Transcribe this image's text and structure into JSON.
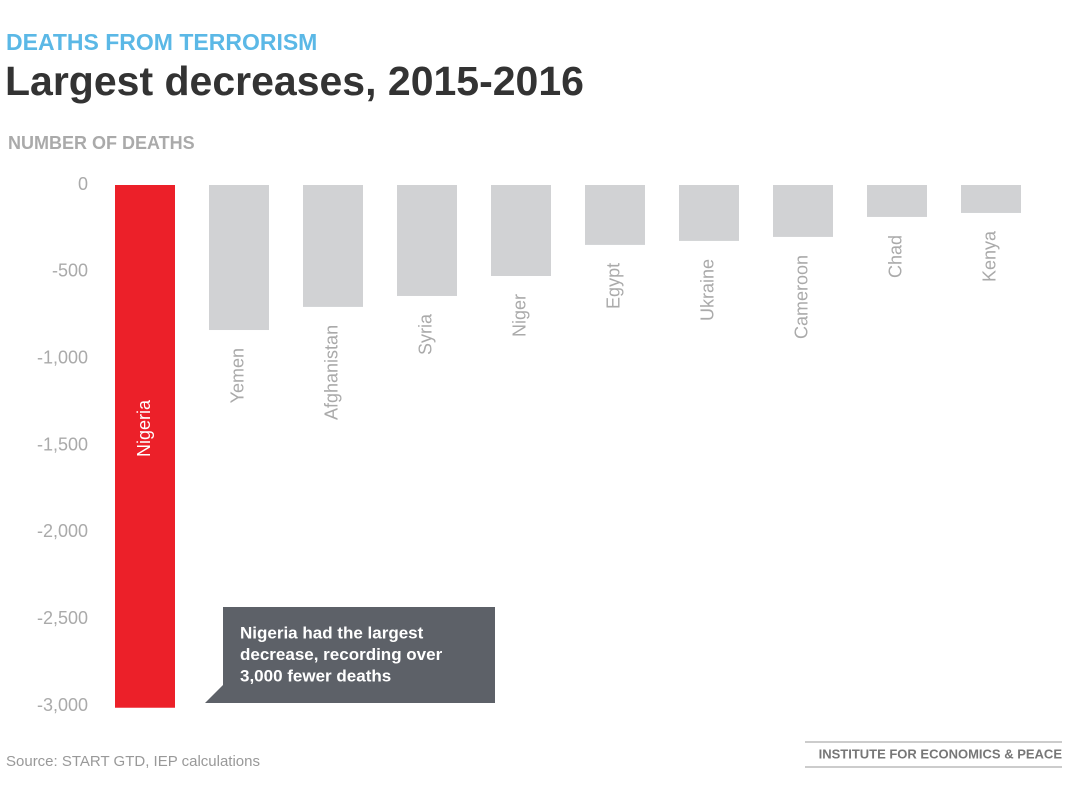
{
  "chart_data": {
    "type": "bar",
    "kicker": "DEATHS FROM TERRORISM",
    "title": "Largest decreases, 2015-2016",
    "y_label": "NUMBER OF DEATHS",
    "categories": [
      "Nigeria",
      "Yemen",
      "Afghanistan",
      "Syria",
      "Niger",
      "Egypt",
      "Ukraine",
      "Cameroon",
      "Chad",
      "Kenya"
    ],
    "values": [
      -3010,
      -835,
      -702,
      -639,
      -524,
      -345,
      -322,
      -299,
      -184,
      -161
    ],
    "colors": [
      "#ec2029",
      "#d1d2d4",
      "#d1d2d4",
      "#d1d2d4",
      "#d1d2d4",
      "#d1d2d4",
      "#d1d2d4",
      "#d1d2d4",
      "#d1d2d4",
      "#d1d2d4"
    ],
    "ylim": [
      -3000,
      0
    ],
    "yticks": [
      0,
      -500,
      {
        "value": -1000,
        "label": "-1,000"
      },
      {
        "value": -1500,
        "label": "-1,500"
      },
      {
        "value": -2000,
        "label": "-2,000"
      },
      {
        "value": -2500,
        "label": "-2,500"
      },
      {
        "value": -3000,
        "label": "-3,000"
      }
    ],
    "grid": false,
    "annotation": [
      "Nigeria had the largest",
      "decrease, recording over",
      "3,000 fewer deaths"
    ],
    "source": "Source: START GTD, IEP calculations",
    "brand": "INSTITUTE FOR ECONOMICS & PEACE"
  }
}
